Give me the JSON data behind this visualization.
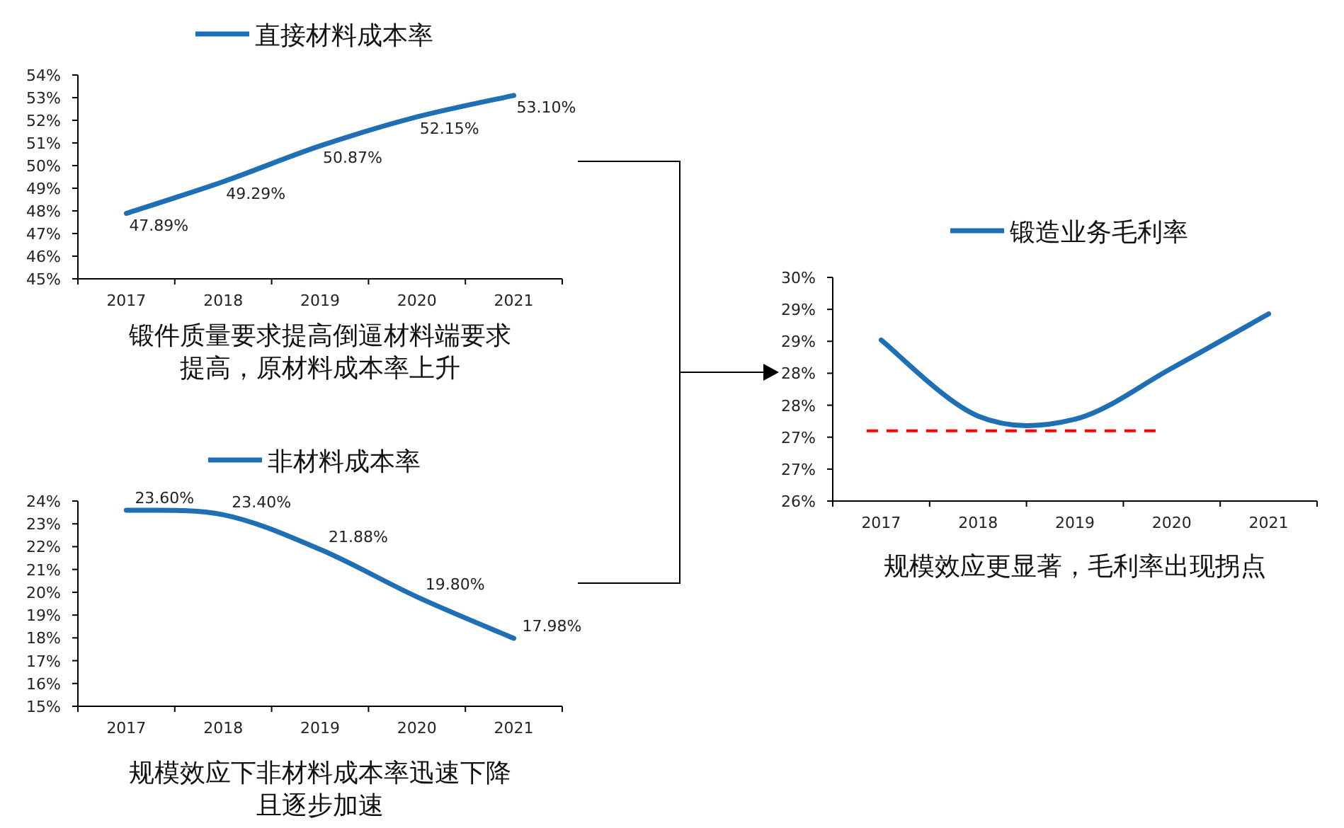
{
  "chart_data": [
    {
      "type": "line",
      "legend": "top",
      "grid": false,
      "categories": [
        "2017",
        "2018",
        "2019",
        "2020",
        "2021"
      ],
      "series": [
        {
          "name": "直接材料成本率",
          "color": "#1f6fb5",
          "values": [
            47.89,
            49.29,
            50.87,
            52.15,
            53.1
          ],
          "value_labels": [
            "47.89%",
            "49.29%",
            "50.87%",
            "52.15%",
            "53.10%"
          ]
        }
      ],
      "ylim": [
        45,
        54
      ],
      "yticks": [
        {
          "value": 45,
          "label": "45%"
        },
        {
          "value": 46,
          "label": "46%"
        },
        {
          "value": 47,
          "label": "47%"
        },
        {
          "value": 48,
          "label": "48%"
        },
        {
          "value": 49,
          "label": "49%"
        },
        {
          "value": 50,
          "label": "50%"
        },
        {
          "value": 51,
          "label": "51%"
        },
        {
          "value": 52,
          "label": "52%"
        },
        {
          "value": 53,
          "label": "53%"
        },
        {
          "value": 54,
          "label": "54%"
        }
      ],
      "annotations": [
        "锻件质量要求提高倒逼材料端要求提高，原材料成本率上升"
      ]
    },
    {
      "type": "line",
      "legend": "top",
      "grid": false,
      "categories": [
        "2017",
        "2018",
        "2019",
        "2020",
        "2021"
      ],
      "series": [
        {
          "name": "非材料成本率",
          "color": "#1f6fb5",
          "values": [
            23.6,
            23.4,
            21.88,
            19.8,
            17.98
          ],
          "value_labels": [
            "23.60%",
            "23.40%",
            "21.88%",
            "19.80%",
            "17.98%"
          ]
        }
      ],
      "ylim": [
        15,
        24
      ],
      "yticks": [
        {
          "value": 15,
          "label": "15%"
        },
        {
          "value": 16,
          "label": "16%"
        },
        {
          "value": 17,
          "label": "17%"
        },
        {
          "value": 18,
          "label": "18%"
        },
        {
          "value": 19,
          "label": "19%"
        },
        {
          "value": 20,
          "label": "20%"
        },
        {
          "value": 21,
          "label": "21%"
        },
        {
          "value": 22,
          "label": "22%"
        },
        {
          "value": 23,
          "label": "23%"
        },
        {
          "value": 24,
          "label": "24%"
        }
      ],
      "annotations": [
        "规模效应下非材料成本率迅速下降且逐步加速"
      ]
    },
    {
      "type": "line",
      "legend": "top",
      "grid": false,
      "categories": [
        "2017",
        "2018",
        "2019",
        "2020",
        "2021"
      ],
      "series": [
        {
          "name": "锻造业务毛利率",
          "color": "#1f6fb5",
          "values": [
            28.52,
            27.33,
            27.28,
            28.08,
            28.93
          ]
        }
      ],
      "ylim": [
        26,
        29.5
      ],
      "yticks": [
        {
          "value": 26,
          "label": "26%"
        },
        {
          "value": 26.5,
          "label": "27%"
        },
        {
          "value": 27,
          "label": "27%"
        },
        {
          "value": 27.5,
          "label": "28%"
        },
        {
          "value": 28,
          "label": "28%"
        },
        {
          "value": 28.5,
          "label": "29%"
        },
        {
          "value": 29,
          "label": "29%"
        },
        {
          "value": 29.5,
          "label": "30%"
        }
      ],
      "ref_lines": [
        {
          "axis": "y",
          "value": 27.1,
          "color": "#ff0000",
          "line_style": "dashed"
        }
      ],
      "annotations": [
        "规模效应更显著，毛利率出现拐点"
      ]
    }
  ]
}
